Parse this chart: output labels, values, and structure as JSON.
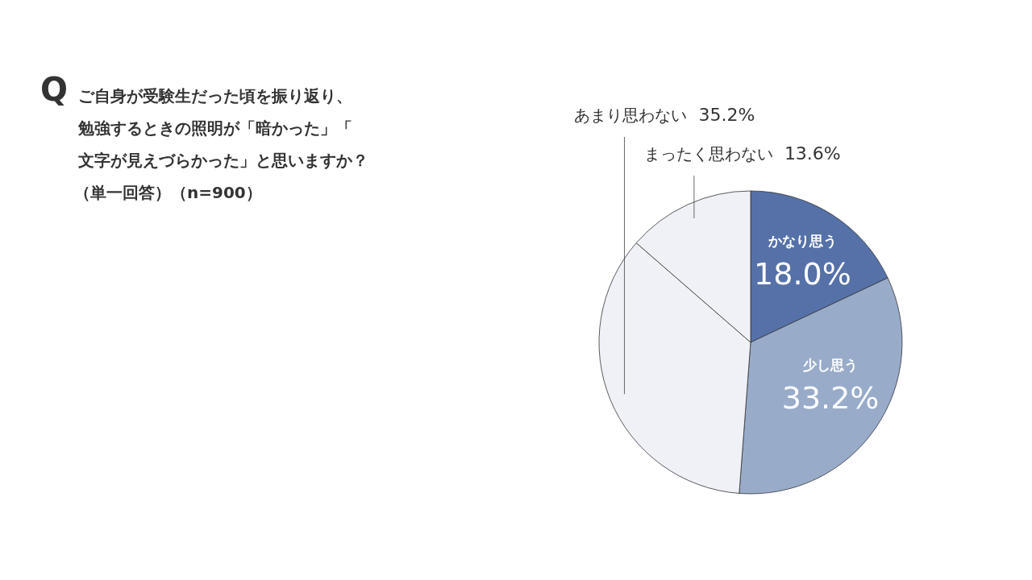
{
  "chart_data": {
    "type": "pie",
    "title": "ご自身が受験生だった頃を振り返り、勉強するときの照明が「暗かった」「文字が見えづらかった」と思いますか？",
    "subtitle": "（単一回答）（n=900）",
    "annotations": [
      "Q"
    ],
    "categories": [
      "かなり思う",
      "少し思う",
      "あまり思わない",
      "まったく思わない"
    ],
    "values": [
      18.0,
      33.2,
      35.2,
      13.6
    ],
    "colors": [
      "#5571a8",
      "#98acca",
      "#eff1f6",
      "#eff1f6"
    ],
    "value_labels": [
      "18.0%",
      "33.2%",
      "35.2%",
      "13.6%"
    ]
  }
}
